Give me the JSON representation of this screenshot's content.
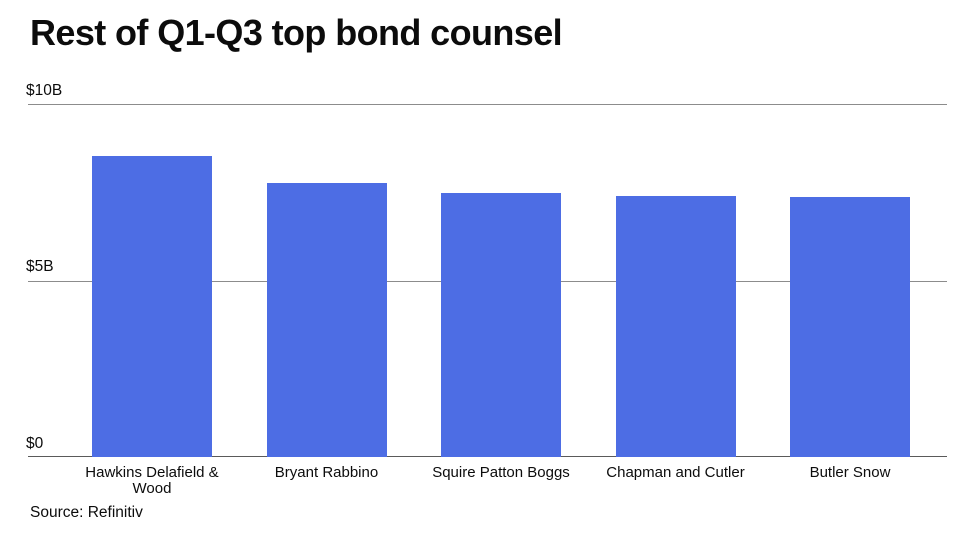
{
  "chart_data": {
    "type": "bar",
    "title": "Rest of Q1-Q3 top bond counsel",
    "categories": [
      "Hawkins Delafield & Wood",
      "Bryant Rabbino",
      "Squire Patton Boggs",
      "Chapman and Cutler",
      "Butler Snow"
    ],
    "values": [
      8.53,
      7.75,
      7.48,
      7.4,
      7.37
    ],
    "value_unit": "$B",
    "xlabel": "",
    "ylabel": "",
    "ylim": [
      0,
      10
    ],
    "yticks": [
      {
        "value": 0,
        "label": "$0"
      },
      {
        "value": 5,
        "label": "$5B"
      },
      {
        "value": 10,
        "label": "$10B"
      }
    ],
    "grid": "horizontal",
    "legend": "none",
    "source": "Source: Refinitiv"
  },
  "colors": {
    "bar": "#4d6de4",
    "gridline": "#8c8c8c",
    "axis_line": "#5a5a5a",
    "text": "#0c0c0c",
    "background": "#ffffff"
  }
}
